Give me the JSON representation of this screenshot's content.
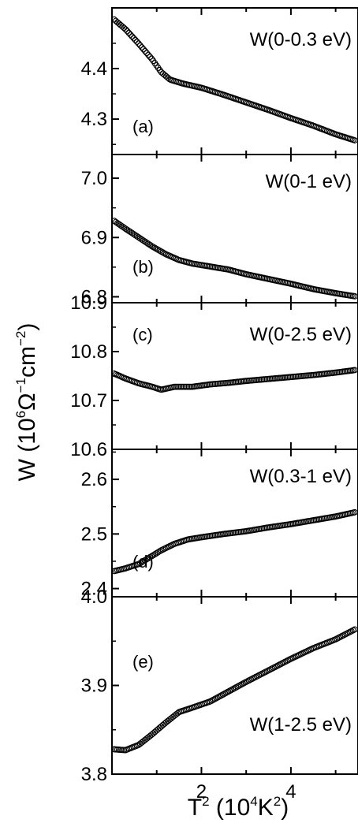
{
  "figure": {
    "ylabel": {
      "prefix": "W (10",
      "exp1": "6",
      "mid": "Ω",
      "exp2": "−1",
      "mid2": "cm",
      "exp3": "−2",
      "suffix": ")"
    },
    "xlabel": {
      "prefix": "T",
      "exp1": "2",
      "mid": " (10",
      "exp2": "4",
      "mid2": "K",
      "exp3": "2",
      "suffix": ")"
    }
  },
  "chart_data": [
    {
      "type": "scatter",
      "panel": "(a)",
      "title": "W(0-0.3 eV)",
      "xlim": [
        0,
        5.5
      ],
      "ylim": [
        4.23,
        4.52
      ],
      "yticks": [
        4.3,
        4.4
      ],
      "ytick_labels": [
        "4.3",
        "4.4"
      ],
      "xticks": [
        2,
        4
      ],
      "points": [
        [
          0.05,
          4.497
        ],
        [
          0.3,
          4.478
        ],
        [
          0.6,
          4.449
        ],
        [
          0.9,
          4.418
        ],
        [
          1.1,
          4.393
        ],
        [
          1.3,
          4.378
        ],
        [
          1.6,
          4.37
        ],
        [
          2.0,
          4.362
        ],
        [
          2.5,
          4.348
        ],
        [
          3.0,
          4.333
        ],
        [
          3.5,
          4.318
        ],
        [
          4.0,
          4.302
        ],
        [
          4.5,
          4.287
        ],
        [
          5.0,
          4.27
        ],
        [
          5.5,
          4.256
        ]
      ]
    },
    {
      "type": "scatter",
      "panel": "(b)",
      "title": "W(0-1 eV)",
      "xlim": [
        0,
        5.5
      ],
      "ylim": [
        6.79,
        7.04
      ],
      "yticks": [
        6.8,
        6.9,
        7.0
      ],
      "ytick_labels": [
        "6.8",
        "6.9",
        "7.0"
      ],
      "xticks": [
        2,
        4
      ],
      "points": [
        [
          0.05,
          6.928
        ],
        [
          0.3,
          6.915
        ],
        [
          0.6,
          6.9
        ],
        [
          0.9,
          6.885
        ],
        [
          1.2,
          6.872
        ],
        [
          1.5,
          6.862
        ],
        [
          1.8,
          6.856
        ],
        [
          2.2,
          6.851
        ],
        [
          2.6,
          6.846
        ],
        [
          3.0,
          6.838
        ],
        [
          3.5,
          6.83
        ],
        [
          4.0,
          6.822
        ],
        [
          4.5,
          6.813
        ],
        [
          5.0,
          6.806
        ],
        [
          5.5,
          6.8
        ]
      ]
    },
    {
      "type": "scatter",
      "panel": "(c)",
      "title": "W(0-2.5 eV)",
      "xlim": [
        0,
        5.5
      ],
      "ylim": [
        10.6,
        10.9
      ],
      "yticks": [
        10.6,
        10.7,
        10.8,
        10.9
      ],
      "ytick_labels": [
        "10.6",
        "10.7",
        "10.8",
        "10.9"
      ],
      "xticks": [
        2,
        4
      ],
      "points": [
        [
          0.05,
          10.755
        ],
        [
          0.3,
          10.745
        ],
        [
          0.6,
          10.735
        ],
        [
          0.9,
          10.728
        ],
        [
          1.1,
          10.722
        ],
        [
          1.4,
          10.728
        ],
        [
          1.8,
          10.728
        ],
        [
          2.2,
          10.733
        ],
        [
          2.6,
          10.736
        ],
        [
          3.0,
          10.74
        ],
        [
          3.5,
          10.744
        ],
        [
          4.0,
          10.748
        ],
        [
          4.5,
          10.752
        ],
        [
          5.0,
          10.757
        ],
        [
          5.5,
          10.763
        ]
      ]
    },
    {
      "type": "scatter",
      "panel": "(d)",
      "title": "W(0.3-1 eV)",
      "xlim": [
        0,
        5.5
      ],
      "ylim": [
        2.385,
        2.655
      ],
      "yticks": [
        2.4,
        2.5,
        2.6
      ],
      "ytick_labels": [
        "2.4",
        "2.5",
        "2.6"
      ],
      "xticks": [
        2,
        4
      ],
      "points": [
        [
          0.05,
          2.432
        ],
        [
          0.3,
          2.437
        ],
        [
          0.6,
          2.445
        ],
        [
          0.9,
          2.46
        ],
        [
          1.1,
          2.47
        ],
        [
          1.4,
          2.482
        ],
        [
          1.7,
          2.49
        ],
        [
          2.0,
          2.494
        ],
        [
          2.5,
          2.5
        ],
        [
          3.0,
          2.505
        ],
        [
          3.5,
          2.512
        ],
        [
          4.0,
          2.518
        ],
        [
          4.5,
          2.525
        ],
        [
          5.0,
          2.532
        ],
        [
          5.5,
          2.541
        ]
      ]
    },
    {
      "type": "scatter",
      "panel": "(e)",
      "title": "W(1-2.5 eV)",
      "xlim": [
        0,
        5.5
      ],
      "ylim": [
        3.8,
        4.0
      ],
      "yticks": [
        3.8,
        3.9,
        4.0
      ],
      "ytick_labels": [
        "3.8",
        "3.9",
        "4.0"
      ],
      "xticks": [
        2,
        4
      ],
      "xtick_labels": [
        "2",
        "4"
      ],
      "points": [
        [
          0.05,
          3.828
        ],
        [
          0.3,
          3.827
        ],
        [
          0.6,
          3.833
        ],
        [
          0.9,
          3.845
        ],
        [
          1.2,
          3.858
        ],
        [
          1.5,
          3.87
        ],
        [
          1.8,
          3.875
        ],
        [
          2.2,
          3.882
        ],
        [
          2.6,
          3.893
        ],
        [
          3.0,
          3.904
        ],
        [
          3.5,
          3.917
        ],
        [
          4.0,
          3.93
        ],
        [
          4.5,
          3.942
        ],
        [
          5.0,
          3.952
        ],
        [
          5.5,
          3.965
        ]
      ]
    }
  ]
}
